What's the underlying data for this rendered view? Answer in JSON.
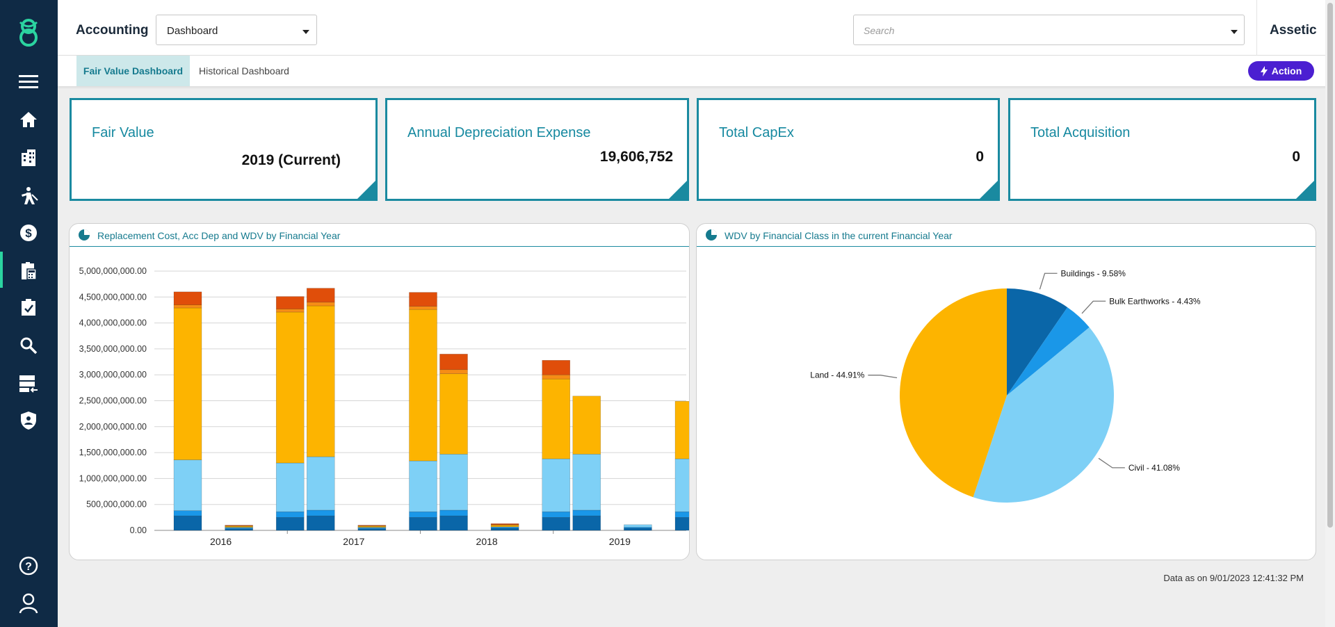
{
  "header": {
    "module_title": "Accounting",
    "view_select": {
      "value": "Dashboard"
    },
    "search": {
      "placeholder": "Search"
    },
    "brand": "Assetic"
  },
  "tabs": [
    {
      "label": "Fair Value Dashboard",
      "active": true
    },
    {
      "label": "Historical Dashboard",
      "active": false
    }
  ],
  "action_button": {
    "label": "Action"
  },
  "sidebar": {
    "items": [
      {
        "icon": "menu-icon"
      },
      {
        "icon": "home-icon"
      },
      {
        "icon": "building-icon"
      },
      {
        "icon": "worker-icon"
      },
      {
        "icon": "finance-icon"
      },
      {
        "icon": "accounting-icon",
        "active": true
      },
      {
        "icon": "clipboard-icon"
      },
      {
        "icon": "search-icon"
      },
      {
        "icon": "server-icon"
      },
      {
        "icon": "shield-icon"
      },
      {
        "icon": "help-icon"
      },
      {
        "icon": "user-icon"
      }
    ]
  },
  "cards": [
    {
      "title": "Fair Value",
      "value": "2019 (Current)"
    },
    {
      "title": "Annual Depreciation Expense",
      "value": "19,606,752"
    },
    {
      "title": "Total CapEx",
      "value": "0"
    },
    {
      "title": "Total Acquisition",
      "value": "0"
    }
  ],
  "panels": {
    "bar_title": "Replacement Cost, Acc Dep and WDV by Financial Year",
    "pie_title": "WDV by Financial Class in the current Financial Year"
  },
  "timestamp": "Data as on 9/01/2023 12:41:32 PM",
  "colors": {
    "navy": "#0f2a45",
    "teal": "#1a8aa0",
    "action": "#4b1fd1",
    "series": [
      "#0a66a8",
      "#1a97e8",
      "#7ed0f6",
      "#fdb400",
      "#f68d16",
      "#e04e0a"
    ]
  },
  "chart_data": [
    {
      "type": "bar",
      "stacked": true,
      "title": "Replacement Cost, Acc Dep and WDV by Financial Year",
      "categories": [
        "2016",
        "2017",
        "2018",
        "2019"
      ],
      "bars_per_category": 3,
      "ylim": [
        0,
        5000000000
      ],
      "yticks": [
        "0.00",
        "500,000,000.00",
        "1,000,000,000.00",
        "1,500,000,000.00",
        "2,000,000,000.00",
        "2,500,000,000.00",
        "3,000,000,000.00",
        "3,500,000,000.00",
        "4,000,000,000.00",
        "4,500,000,000.00",
        "5,000,000,000.00"
      ],
      "grid": true,
      "bars": [
        {
          "category": "2016",
          "segments": [
            280000000,
            100000000,
            980000000,
            2930000000,
            60000000,
            250000000
          ]
        },
        {
          "category": "2016",
          "segments": [
            30000000,
            20000000,
            10000000,
            20000000,
            10000000,
            10000000
          ]
        },
        {
          "category": "2016",
          "segments": [
            250000000,
            110000000,
            940000000,
            2910000000,
            60000000,
            240000000
          ]
        },
        {
          "category": "2017",
          "segments": [
            280000000,
            110000000,
            1030000000,
            2910000000,
            70000000,
            270000000
          ]
        },
        {
          "category": "2017",
          "segments": [
            30000000,
            20000000,
            10000000,
            20000000,
            10000000,
            10000000
          ]
        },
        {
          "category": "2017",
          "segments": [
            250000000,
            110000000,
            980000000,
            2920000000,
            60000000,
            270000000
          ]
        },
        {
          "category": "2018",
          "segments": [
            280000000,
            110000000,
            1080000000,
            1550000000,
            80000000,
            300000000
          ]
        },
        {
          "category": "2018",
          "segments": [
            40000000,
            20000000,
            10000000,
            30000000,
            10000000,
            20000000
          ]
        },
        {
          "category": "2018",
          "segments": [
            250000000,
            110000000,
            1020000000,
            1540000000,
            80000000,
            280000000
          ]
        },
        {
          "category": "2019",
          "segments": [
            280000000,
            110000000,
            1080000000,
            1120000000,
            0,
            0
          ]
        },
        {
          "category": "2019",
          "segments": [
            40000000,
            20000000,
            50000000,
            0,
            0,
            0
          ]
        },
        {
          "category": "2019",
          "segments": [
            250000000,
            110000000,
            1020000000,
            1110000000,
            0,
            0
          ]
        }
      ]
    },
    {
      "type": "pie",
      "title": "WDV by Financial Class in the current Financial Year",
      "slices": [
        {
          "label": "Buildings - 9.58%",
          "value": 9.58,
          "color": "#0a66a8"
        },
        {
          "label": "Bulk Earthworks - 4.43%",
          "value": 4.43,
          "color": "#1a97e8"
        },
        {
          "label": "Civil - 41.08%",
          "value": 41.08,
          "color": "#7ed0f6"
        },
        {
          "label": "Land - 44.91%",
          "value": 44.91,
          "color": "#fdb400"
        }
      ]
    }
  ]
}
